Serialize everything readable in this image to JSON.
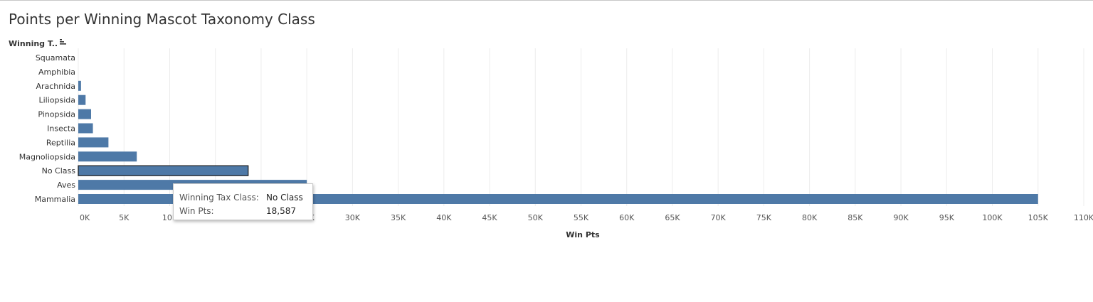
{
  "title": "Points per Winning Mascot Taxonomy Class",
  "row_header": {
    "label": "Winning T..",
    "sort_icon": "sort-descending-icon"
  },
  "tooltip": {
    "rows": [
      {
        "key": "Winning Tax Class:",
        "value": "No Class"
      },
      {
        "key": "Win Pts:",
        "value": "18,587"
      }
    ]
  },
  "colors": {
    "bar": "#4e79a7",
    "selected_outline": "#1a1a1a",
    "grid": "#ececec",
    "text": "#333333"
  },
  "chart_data": {
    "type": "bar",
    "orientation": "horizontal",
    "title": "Points per Winning Mascot Taxonomy Class",
    "xlabel": "Win Pts",
    "ylabel": "Winning T..",
    "categories": [
      "Squamata",
      "Amphibia",
      "Arachnida",
      "Liliopsida",
      "Pinopsida",
      "Insecta",
      "Reptilia",
      "Magnoliopsida",
      "No Class",
      "Aves",
      "Mammalia"
    ],
    "values": [
      0,
      0,
      300,
      800,
      1400,
      1600,
      3300,
      6400,
      18587,
      25000,
      105000
    ],
    "selected": "No Class",
    "xlim": [
      0,
      110000
    ],
    "xticks": [
      0,
      5000,
      10000,
      15000,
      20000,
      25000,
      30000,
      35000,
      40000,
      45000,
      50000,
      55000,
      60000,
      65000,
      70000,
      75000,
      80000,
      85000,
      90000,
      95000,
      100000,
      105000,
      110000
    ],
    "xtick_labels": [
      "0K",
      "5K",
      "10K",
      "15K",
      "20K",
      "25K",
      "30K",
      "35K",
      "40K",
      "45K",
      "50K",
      "55K",
      "60K",
      "65K",
      "70K",
      "75K",
      "80K",
      "85K",
      "90K",
      "95K",
      "100K",
      "105K",
      "110K"
    ],
    "grid": true
  }
}
